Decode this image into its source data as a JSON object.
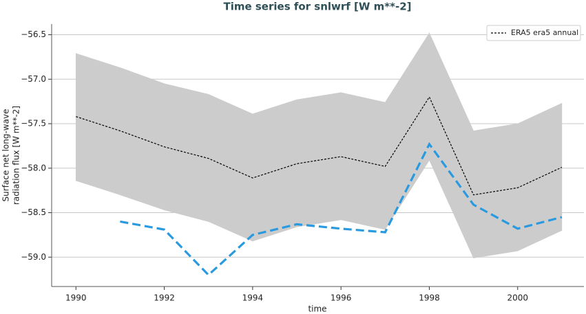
{
  "chart_data": {
    "type": "line",
    "title": "Time series for snlwrf [W m**-2]",
    "xlabel": "time",
    "ylabel": [
      "Surface net long-wave",
      "radiation flux [W m**-2]"
    ],
    "x": [
      1990,
      1991,
      1992,
      1993,
      1994,
      1995,
      1996,
      1997,
      1998,
      1999,
      2000,
      2001
    ],
    "series": [
      {
        "name": "ERA5 era5 annual",
        "color": "#000000",
        "dash": "3,2",
        "width": 1.2,
        "values": [
          -57.42,
          -57.58,
          -57.76,
          -57.89,
          -58.11,
          -57.95,
          -57.87,
          -57.98,
          -57.2,
          -58.3,
          -58.22,
          -57.99
        ]
      },
      {
        "color": "#2a9ae0",
        "dash": "12,6",
        "width": 3.2,
        "values": [
          null,
          -58.6,
          -58.69,
          -59.2,
          -58.75,
          -58.63,
          -58.68,
          -58.72,
          -57.73,
          -58.41,
          -58.68,
          -58.55
        ]
      }
    ],
    "band": {
      "color": "#cccccc",
      "upper": [
        -56.71,
        -56.87,
        -57.05,
        -57.17,
        -57.39,
        -57.23,
        -57.15,
        -57.26,
        -56.48,
        -57.58,
        -57.5,
        -57.27
      ],
      "lower": [
        -58.14,
        -58.3,
        -58.47,
        -58.6,
        -58.82,
        -58.66,
        -58.58,
        -58.69,
        -57.91,
        -59.01,
        -58.93,
        -58.7
      ]
    },
    "xlim": [
      1989.45,
      2001.5
    ],
    "ylim": [
      -59.33,
      -56.38
    ],
    "xticks": [
      1990,
      1992,
      1994,
      1996,
      1998,
      2000
    ],
    "yticks": [
      {
        "value": -56.5,
        "label": "−56.5"
      },
      {
        "value": -57.0,
        "label": "−57.0"
      },
      {
        "value": -57.5,
        "label": "−57.5"
      },
      {
        "value": -58.0,
        "label": "−58.0"
      },
      {
        "value": -58.5,
        "label": "−58.5"
      },
      {
        "value": -59.0,
        "label": "−59.0"
      }
    ],
    "grid": true,
    "legend": "upper right"
  }
}
